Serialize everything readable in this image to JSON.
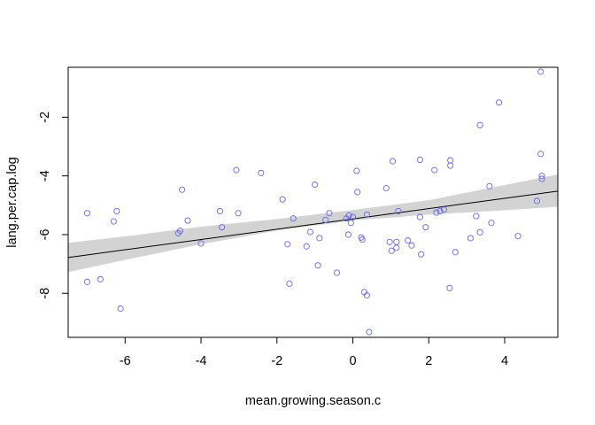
{
  "chart_data": {
    "type": "scatter",
    "title": "",
    "xlabel": "mean.growing.season.c",
    "ylabel": "lang.per.cap.log",
    "xlim": [
      -7.5,
      5.4
    ],
    "ylim": [
      -9.5,
      -0.3
    ],
    "x_ticks": [
      -6,
      -4,
      -2,
      0,
      2,
      4
    ],
    "x_tick_labels": [
      "-6",
      "-4",
      "-2",
      "0",
      "2",
      "4"
    ],
    "y_ticks": [
      -8,
      -6,
      -4,
      -2
    ],
    "y_tick_labels": [
      "-8",
      "-6",
      "-4",
      "-2"
    ],
    "grid": false,
    "legend": "none",
    "colors": {
      "points": "#6666ee",
      "line": "#000000",
      "band": "#d3d3d3",
      "axis": "#000000"
    },
    "regression_line": {
      "x": [
        -7.5,
        5.4
      ],
      "y": [
        -6.78,
        -4.52
      ]
    },
    "confidence_band": {
      "x": [
        -7.5,
        -6,
        -4,
        -2,
        0,
        2,
        4,
        5.4
      ],
      "lower": [
        -7.28,
        -6.86,
        -6.33,
        -5.86,
        -5.52,
        -5.32,
        -5.17,
        -5.05
      ],
      "upper": [
        -6.28,
        -6.06,
        -5.73,
        -5.47,
        -5.16,
        -4.83,
        -4.31,
        -3.95
      ]
    },
    "points": [
      {
        "x": -7.0,
        "y": -5.27
      },
      {
        "x": -7.0,
        "y": -7.61
      },
      {
        "x": -6.65,
        "y": -7.52
      },
      {
        "x": -6.3,
        "y": -5.55
      },
      {
        "x": -6.22,
        "y": -5.2
      },
      {
        "x": -6.12,
        "y": -8.52
      },
      {
        "x": -4.6,
        "y": -5.95
      },
      {
        "x": -4.55,
        "y": -5.87
      },
      {
        "x": -4.5,
        "y": -4.47
      },
      {
        "x": -4.35,
        "y": -5.52
      },
      {
        "x": -4.0,
        "y": -6.3
      },
      {
        "x": -3.5,
        "y": -5.2
      },
      {
        "x": -3.45,
        "y": -5.75
      },
      {
        "x": -3.07,
        "y": -3.8
      },
      {
        "x": -3.02,
        "y": -5.27
      },
      {
        "x": -2.42,
        "y": -3.9
      },
      {
        "x": -1.85,
        "y": -4.8
      },
      {
        "x": -1.72,
        "y": -6.33
      },
      {
        "x": -1.67,
        "y": -7.67
      },
      {
        "x": -1.57,
        "y": -5.45
      },
      {
        "x": -1.22,
        "y": -6.4
      },
      {
        "x": -1.12,
        "y": -5.91
      },
      {
        "x": -1.0,
        "y": -4.3
      },
      {
        "x": -0.92,
        "y": -7.05
      },
      {
        "x": -0.88,
        "y": -6.12
      },
      {
        "x": -0.72,
        "y": -5.5
      },
      {
        "x": -0.62,
        "y": -5.27
      },
      {
        "x": -0.42,
        "y": -7.3
      },
      {
        "x": -0.17,
        "y": -5.45
      },
      {
        "x": -0.12,
        "y": -6.0
      },
      {
        "x": -0.1,
        "y": -5.35
      },
      {
        "x": -0.05,
        "y": -5.6
      },
      {
        "x": 0.0,
        "y": -5.4
      },
      {
        "x": 0.1,
        "y": -3.83
      },
      {
        "x": 0.12,
        "y": -4.55
      },
      {
        "x": 0.22,
        "y": -6.1
      },
      {
        "x": 0.25,
        "y": -6.17
      },
      {
        "x": 0.3,
        "y": -7.96
      },
      {
        "x": 0.37,
        "y": -8.07
      },
      {
        "x": 0.37,
        "y": -5.32
      },
      {
        "x": 0.43,
        "y": -9.32
      },
      {
        "x": 0.88,
        "y": -4.42
      },
      {
        "x": 0.97,
        "y": -6.25
      },
      {
        "x": 1.02,
        "y": -6.55
      },
      {
        "x": 1.05,
        "y": -3.5
      },
      {
        "x": 1.15,
        "y": -6.25
      },
      {
        "x": 1.15,
        "y": -6.45
      },
      {
        "x": 1.2,
        "y": -5.2
      },
      {
        "x": 1.45,
        "y": -6.2
      },
      {
        "x": 1.55,
        "y": -6.37
      },
      {
        "x": 1.77,
        "y": -3.45
      },
      {
        "x": 1.77,
        "y": -5.4
      },
      {
        "x": 1.8,
        "y": -6.67
      },
      {
        "x": 1.92,
        "y": -5.75
      },
      {
        "x": 2.15,
        "y": -3.8
      },
      {
        "x": 2.2,
        "y": -5.25
      },
      {
        "x": 2.3,
        "y": -5.2
      },
      {
        "x": 2.4,
        "y": -5.15
      },
      {
        "x": 2.55,
        "y": -7.82
      },
      {
        "x": 2.57,
        "y": -3.47
      },
      {
        "x": 2.57,
        "y": -3.65
      },
      {
        "x": 2.7,
        "y": -6.6
      },
      {
        "x": 3.1,
        "y": -6.12
      },
      {
        "x": 3.25,
        "y": -5.37
      },
      {
        "x": 3.35,
        "y": -2.27
      },
      {
        "x": 3.35,
        "y": -5.92
      },
      {
        "x": 3.6,
        "y": -4.35
      },
      {
        "x": 3.65,
        "y": -5.6
      },
      {
        "x": 3.85,
        "y": -1.5
      },
      {
        "x": 4.35,
        "y": -6.05
      },
      {
        "x": 4.85,
        "y": -4.85
      },
      {
        "x": 4.95,
        "y": -0.45
      },
      {
        "x": 4.95,
        "y": -3.25
      },
      {
        "x": 4.98,
        "y": -4.0
      },
      {
        "x": 4.98,
        "y": -4.1
      }
    ]
  }
}
